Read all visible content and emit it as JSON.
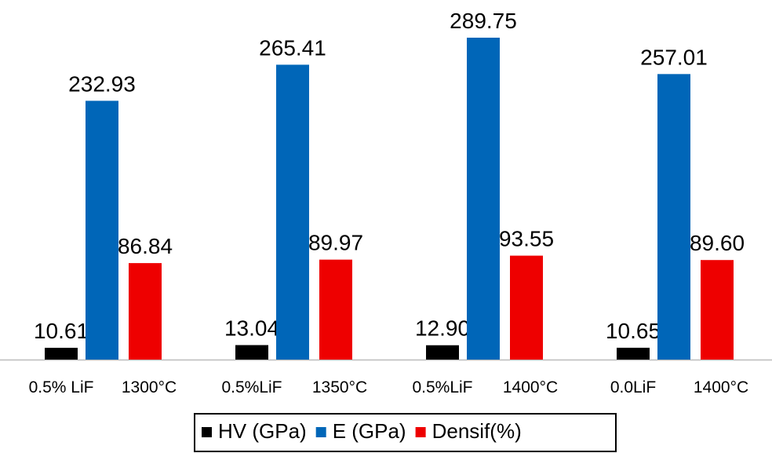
{
  "chart_data": {
    "type": "bar",
    "categories": [
      [
        "0.5% LiF",
        "1300°C"
      ],
      [
        "0.5%LiF",
        "1350°C"
      ],
      [
        "0.5%LiF",
        "1400°C"
      ],
      [
        "0.0LiF",
        "1400°C"
      ]
    ],
    "series": [
      {
        "name": "HV (GPa)",
        "color": "#000000",
        "values": [
          10.61,
          13.04,
          12.9,
          10.65
        ],
        "value_labels": [
          "10.61",
          "13.04",
          "12.90",
          "10.65"
        ]
      },
      {
        "name": "E (GPa)",
        "color": "#0066b8",
        "values": [
          232.93,
          265.41,
          289.75,
          257.01
        ],
        "value_labels": [
          "232.93",
          "265.41",
          "289.75",
          "257.01"
        ]
      },
      {
        "name": "Densif(%)",
        "color": "#ee0000",
        "values": [
          86.84,
          89.97,
          93.55,
          89.6
        ],
        "value_labels": [
          "86.84",
          "89.97",
          "93.55",
          "89.60"
        ]
      }
    ],
    "legend": "bottom"
  }
}
